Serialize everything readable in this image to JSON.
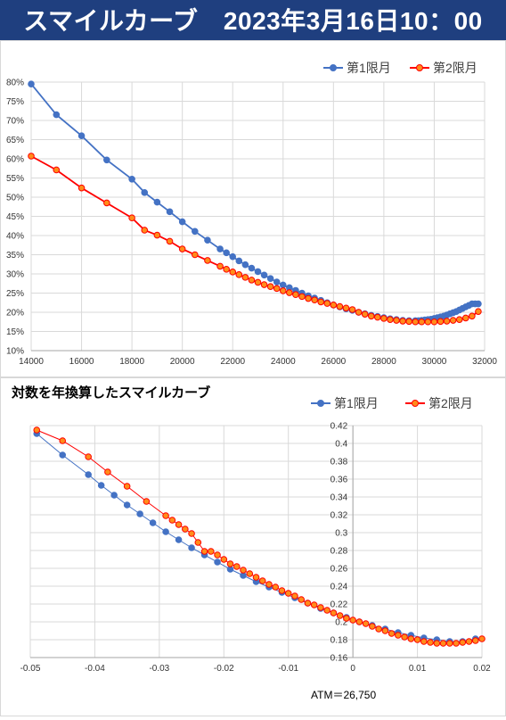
{
  "banner": {
    "title": "スマイルカーブ　2023年3月16日10：00"
  },
  "colors": {
    "banner_bg": "#1f3f7f",
    "series1": "#4472c4",
    "series2": "#ff0000",
    "series2_fill": "#ff8c1a",
    "grid": "#d9d9d9"
  },
  "chart_data": [
    {
      "type": "line",
      "title": "",
      "xlabel": "",
      "ylabel": "",
      "xlim": [
        14000,
        32000
      ],
      "ylim": [
        0.1,
        0.8
      ],
      "x_ticks": [
        14000,
        16000,
        18000,
        20000,
        22000,
        24000,
        26000,
        28000,
        30000,
        32000
      ],
      "x_tick_labels": [
        "14000",
        "16000",
        "18000",
        "20000",
        "22000",
        "24000",
        "26000",
        "28000",
        "30000",
        "32000"
      ],
      "y_ticks": [
        0.1,
        0.15,
        0.2,
        0.25,
        0.3,
        0.35,
        0.4,
        0.45,
        0.5,
        0.55,
        0.6,
        0.65,
        0.7,
        0.75,
        0.8
      ],
      "y_tick_labels": [
        "10%",
        "15%",
        "20%",
        "25%",
        "30%",
        "35%",
        "40%",
        "45%",
        "50%",
        "55%",
        "60%",
        "65%",
        "70%",
        "75%",
        "80%"
      ],
      "grid": true,
      "legend_position": "top-right",
      "series": [
        {
          "name": "第1限月",
          "color": "#4472c4",
          "x": [
            14000,
            15000,
            16000,
            17000,
            18000,
            18500,
            19000,
            19500,
            20000,
            20500,
            21000,
            21500,
            21750,
            22000,
            22250,
            22500,
            22750,
            23000,
            23250,
            23500,
            23750,
            24000,
            24250,
            24500,
            24750,
            25000,
            25250,
            25500,
            25750,
            26000,
            26250,
            26500,
            26750,
            27000,
            27250,
            27500,
            27750,
            28000,
            28250,
            28500,
            28750,
            29000,
            29250,
            29375,
            29500,
            29625,
            29750,
            29875,
            30000,
            30125,
            30250,
            30375,
            30500,
            30625,
            30750,
            30875,
            31000,
            31125,
            31250,
            31375,
            31500,
            31625,
            31750
          ],
          "y": [
            0.795,
            0.715,
            0.66,
            0.597,
            0.547,
            0.512,
            0.487,
            0.462,
            0.436,
            0.411,
            0.388,
            0.365,
            0.355,
            0.345,
            0.334,
            0.324,
            0.315,
            0.306,
            0.297,
            0.288,
            0.279,
            0.271,
            0.264,
            0.257,
            0.25,
            0.243,
            0.237,
            0.231,
            0.225,
            0.219,
            0.214,
            0.209,
            0.205,
            0.2,
            0.196,
            0.192,
            0.189,
            0.186,
            0.183,
            0.181,
            0.179,
            0.178,
            0.178,
            0.178,
            0.179,
            0.18,
            0.181,
            0.182,
            0.184,
            0.186,
            0.188,
            0.19,
            0.193,
            0.196,
            0.199,
            0.202,
            0.206,
            0.21,
            0.214,
            0.218,
            0.222,
            0.222,
            0.222
          ]
        },
        {
          "name": "第2限月",
          "color": "#ff0000",
          "x": [
            14000,
            15000,
            16000,
            17000,
            18000,
            18500,
            19000,
            19500,
            20000,
            20500,
            21000,
            21500,
            21750,
            22000,
            22250,
            22500,
            22750,
            23000,
            23250,
            23500,
            23750,
            24000,
            24250,
            24500,
            24750,
            25000,
            25250,
            25500,
            25750,
            26000,
            26250,
            26500,
            26750,
            27000,
            27250,
            27500,
            27750,
            28000,
            28250,
            28500,
            28750,
            29000,
            29250,
            29500,
            29750,
            30000,
            30250,
            30500,
            30750,
            31000,
            31250,
            31500,
            31750
          ],
          "y": [
            0.607,
            0.571,
            0.524,
            0.485,
            0.446,
            0.414,
            0.401,
            0.385,
            0.365,
            0.35,
            0.335,
            0.32,
            0.312,
            0.305,
            0.298,
            0.291,
            0.284,
            0.278,
            0.272,
            0.267,
            0.262,
            0.256,
            0.251,
            0.246,
            0.241,
            0.236,
            0.232,
            0.227,
            0.223,
            0.219,
            0.215,
            0.211,
            0.207,
            0.2,
            0.195,
            0.19,
            0.187,
            0.184,
            0.181,
            0.179,
            0.177,
            0.176,
            0.175,
            0.175,
            0.175,
            0.175,
            0.176,
            0.177,
            0.179,
            0.181,
            0.185,
            0.19,
            0.202
          ]
        }
      ]
    },
    {
      "type": "line",
      "title": "対数を年換算したスマイルカーブ",
      "xlabel": "",
      "ylabel": "",
      "xlim": [
        -0.05,
        0.02
      ],
      "ylim": [
        0.16,
        0.42
      ],
      "x_ticks": [
        -0.05,
        -0.04,
        -0.03,
        -0.02,
        -0.01,
        0,
        0.01,
        0.02
      ],
      "x_tick_labels": [
        "-0.05",
        "-0.04",
        "-0.03",
        "-0.02",
        "-0.01",
        "0",
        "0.01",
        "0.02"
      ],
      "y_ticks": [
        0.16,
        0.18,
        0.2,
        0.22,
        0.24,
        0.26,
        0.28,
        0.3,
        0.32,
        0.34,
        0.36,
        0.38,
        0.4,
        0.42
      ],
      "y_tick_labels": [
        "0.16",
        "0.18",
        "0.2",
        "0.22",
        "0.24",
        "0.26",
        "0.28",
        "0.3",
        "0.32",
        "0.34",
        "0.36",
        "0.38",
        "0.4",
        "0.42"
      ],
      "grid": true,
      "legend_position": "top-right",
      "annotation": "ATM＝26,750",
      "series": [
        {
          "name": "第1限月",
          "color": "#4472c4",
          "x": [
            -0.049,
            -0.045,
            -0.041,
            -0.039,
            -0.037,
            -0.035,
            -0.033,
            -0.031,
            -0.029,
            -0.027,
            -0.025,
            -0.023,
            -0.021,
            -0.019,
            -0.017,
            -0.015,
            -0.013,
            -0.011,
            -0.009,
            -0.007,
            -0.005,
            -0.003,
            -0.001,
            0.001,
            0.003,
            0.005,
            0.007,
            0.009,
            0.011,
            0.013,
            0.015,
            0.017,
            0.019
          ],
          "y": [
            0.411,
            0.387,
            0.365,
            0.353,
            0.342,
            0.331,
            0.321,
            0.311,
            0.301,
            0.292,
            0.283,
            0.275,
            0.267,
            0.259,
            0.252,
            0.245,
            0.239,
            0.233,
            0.227,
            0.221,
            0.215,
            0.21,
            0.205,
            0.2,
            0.196,
            0.192,
            0.188,
            0.185,
            0.182,
            0.18,
            0.178,
            0.178,
            0.181
          ]
        },
        {
          "name": "第2限月",
          "color": "#ff0000",
          "x": [
            -0.049,
            -0.045,
            -0.041,
            -0.038,
            -0.035,
            -0.032,
            -0.029,
            -0.028,
            -0.027,
            -0.026,
            -0.025,
            -0.024,
            -0.023,
            -0.022,
            -0.021,
            -0.02,
            -0.019,
            -0.018,
            -0.017,
            -0.016,
            -0.015,
            -0.014,
            -0.013,
            -0.012,
            -0.011,
            -0.01,
            -0.009,
            -0.008,
            -0.007,
            -0.006,
            -0.005,
            -0.004,
            -0.003,
            -0.002,
            -0.001,
            0.0,
            0.001,
            0.002,
            0.003,
            0.004,
            0.005,
            0.006,
            0.007,
            0.008,
            0.009,
            0.01,
            0.011,
            0.012,
            0.013,
            0.014,
            0.015,
            0.016,
            0.017,
            0.018,
            0.019,
            0.02
          ],
          "y": [
            0.415,
            0.403,
            0.385,
            0.368,
            0.352,
            0.335,
            0.319,
            0.314,
            0.309,
            0.304,
            0.299,
            0.289,
            0.279,
            0.279,
            0.275,
            0.27,
            0.265,
            0.262,
            0.258,
            0.254,
            0.25,
            0.246,
            0.242,
            0.239,
            0.235,
            0.232,
            0.229,
            0.225,
            0.221,
            0.219,
            0.216,
            0.213,
            0.21,
            0.207,
            0.204,
            0.202,
            0.2,
            0.198,
            0.195,
            0.192,
            0.19,
            0.187,
            0.185,
            0.183,
            0.181,
            0.18,
            0.178,
            0.177,
            0.176,
            0.176,
            0.176,
            0.176,
            0.177,
            0.178,
            0.179,
            0.181
          ]
        }
      ]
    }
  ]
}
